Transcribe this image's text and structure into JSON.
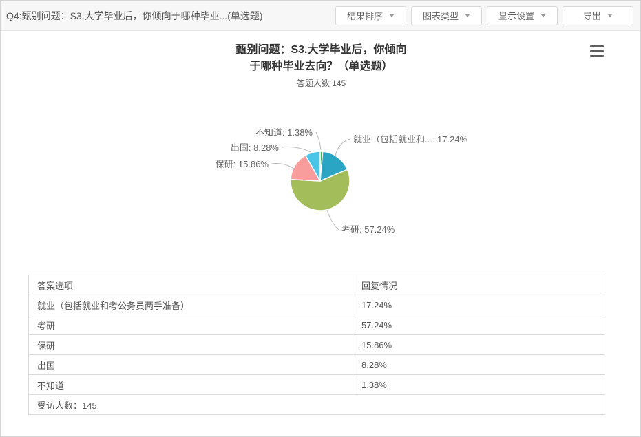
{
  "toolbar": {
    "question": "Q4:甄别问题：S3.大学毕业后，你倾向于哪种毕业...(单选题)",
    "buttons": [
      "结果排序",
      "图表类型",
      "显示设置",
      "导出"
    ]
  },
  "chart": {
    "title_line1": "甄别问题：S3.大学毕业后，你倾向",
    "title_line2": "于哪种毕业去向？（单选题）",
    "subtitle": "答题人数 145"
  },
  "chart_data": {
    "type": "pie",
    "title": "甄别问题：S3.大学毕业后，你倾向于哪种毕业去向？（单选题）",
    "subtitle": "答题人数 145",
    "respondents": 145,
    "unit": "%",
    "labels_style": "outside with leader lines",
    "legend": "none",
    "start_angle_deg": 0,
    "clockwise": true,
    "series": [
      {
        "label": "不知道",
        "value": 1.38,
        "color": "#44b549"
      },
      {
        "label": "就业（包括就业和...",
        "value": 17.24,
        "color": "#2aa5c4"
      },
      {
        "label": "考研",
        "value": 57.24,
        "color": "#a3bd5b"
      },
      {
        "label": "保研",
        "value": 15.86,
        "color": "#f89c9c"
      },
      {
        "label": "出国",
        "value": 8.28,
        "color": "#4ac5e8"
      }
    ]
  },
  "table": {
    "headers": [
      "答案选项",
      "回复情况"
    ],
    "rows": [
      [
        "就业（包括就业和考公务员两手准备）",
        "17.24%"
      ],
      [
        "考研",
        "57.24%"
      ],
      [
        "保研",
        "15.86%"
      ],
      [
        "出国",
        "8.28%"
      ],
      [
        "不知道",
        "1.38%"
      ]
    ],
    "footer": "受访人数：145"
  }
}
